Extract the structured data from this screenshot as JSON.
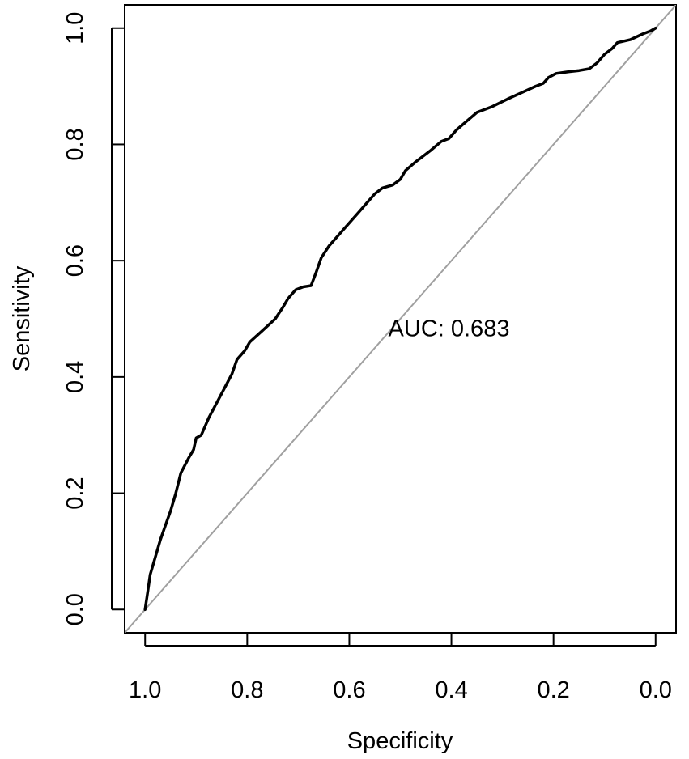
{
  "chart_data": {
    "type": "line",
    "xlabel": "Specificity",
    "ylabel": "Sensitivity",
    "x_reversed": true,
    "xlim": [
      1.04,
      -0.04
    ],
    "ylim": [
      -0.04,
      1.04
    ],
    "x_ticks": [
      1.0,
      0.8,
      0.6,
      0.4,
      0.2,
      0.0
    ],
    "x_tick_labels": [
      "1.0",
      "0.8",
      "0.6",
      "0.4",
      "0.2",
      "0.0"
    ],
    "y_ticks": [
      0.0,
      0.2,
      0.4,
      0.6,
      0.8,
      1.0
    ],
    "y_tick_labels": [
      "0.0",
      "0.2",
      "0.4",
      "0.6",
      "0.8",
      "1.0"
    ],
    "grid": false,
    "annotation": {
      "text": "AUC: 0.683",
      "x": 0.5,
      "y": 0.47
    },
    "reference_line": {
      "from": [
        1.0,
        0.0
      ],
      "to": [
        0.0,
        1.0
      ],
      "color": "#a0a0a0"
    },
    "series": [
      {
        "color": "#000000",
        "points": [
          [
            1.0,
            0.0
          ],
          [
            0.995,
            0.03
          ],
          [
            0.99,
            0.06
          ],
          [
            0.98,
            0.09
          ],
          [
            0.97,
            0.12
          ],
          [
            0.96,
            0.145
          ],
          [
            0.95,
            0.17
          ],
          [
            0.94,
            0.2
          ],
          [
            0.93,
            0.235
          ],
          [
            0.915,
            0.26
          ],
          [
            0.905,
            0.275
          ],
          [
            0.9,
            0.295
          ],
          [
            0.89,
            0.3
          ],
          [
            0.875,
            0.33
          ],
          [
            0.86,
            0.355
          ],
          [
            0.845,
            0.38
          ],
          [
            0.83,
            0.405
          ],
          [
            0.82,
            0.43
          ],
          [
            0.805,
            0.445
          ],
          [
            0.795,
            0.46
          ],
          [
            0.77,
            0.48
          ],
          [
            0.745,
            0.5
          ],
          [
            0.73,
            0.52
          ],
          [
            0.72,
            0.535
          ],
          [
            0.705,
            0.55
          ],
          [
            0.69,
            0.555
          ],
          [
            0.675,
            0.557
          ],
          [
            0.665,
            0.58
          ],
          [
            0.655,
            0.605
          ],
          [
            0.64,
            0.625
          ],
          [
            0.61,
            0.655
          ],
          [
            0.58,
            0.685
          ],
          [
            0.565,
            0.7
          ],
          [
            0.55,
            0.715
          ],
          [
            0.535,
            0.725
          ],
          [
            0.515,
            0.73
          ],
          [
            0.5,
            0.74
          ],
          [
            0.49,
            0.755
          ],
          [
            0.47,
            0.77
          ],
          [
            0.44,
            0.79
          ],
          [
            0.42,
            0.805
          ],
          [
            0.405,
            0.81
          ],
          [
            0.39,
            0.825
          ],
          [
            0.37,
            0.84
          ],
          [
            0.35,
            0.855
          ],
          [
            0.32,
            0.865
          ],
          [
            0.29,
            0.878
          ],
          [
            0.26,
            0.89
          ],
          [
            0.235,
            0.9
          ],
          [
            0.22,
            0.905
          ],
          [
            0.21,
            0.915
          ],
          [
            0.195,
            0.922
          ],
          [
            0.17,
            0.925
          ],
          [
            0.15,
            0.927
          ],
          [
            0.13,
            0.93
          ],
          [
            0.115,
            0.94
          ],
          [
            0.1,
            0.955
          ],
          [
            0.085,
            0.965
          ],
          [
            0.075,
            0.975
          ],
          [
            0.05,
            0.98
          ],
          [
            0.025,
            0.99
          ],
          [
            0.01,
            0.995
          ],
          [
            0.0,
            1.0
          ]
        ]
      }
    ]
  }
}
